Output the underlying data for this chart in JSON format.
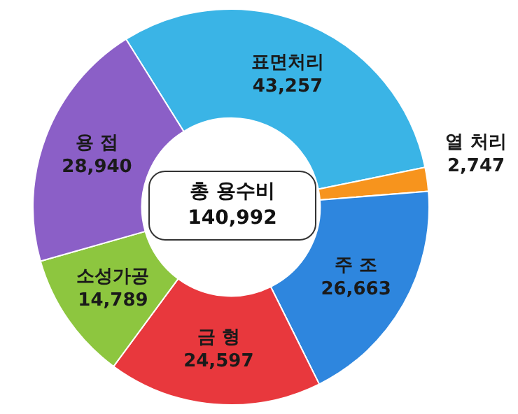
{
  "chart_data": {
    "type": "donut",
    "categories": [
      "표면처리",
      "열 처리",
      "주 조",
      "금 형",
      "소성가공",
      "용 접"
    ],
    "values": [
      43257,
      2747,
      26663,
      24597,
      14789,
      28940
    ],
    "value_labels": [
      "43,257",
      "2,747",
      "26,663",
      "24,597",
      "14,789",
      "28,940"
    ],
    "colors": [
      "#3ab4e6",
      "#f7941d",
      "#2e86de",
      "#e8383d",
      "#8dc63f",
      "#8b5fc7"
    ],
    "annotations": [
      "총 용수비",
      "140,992"
    ],
    "legend": false
  }
}
